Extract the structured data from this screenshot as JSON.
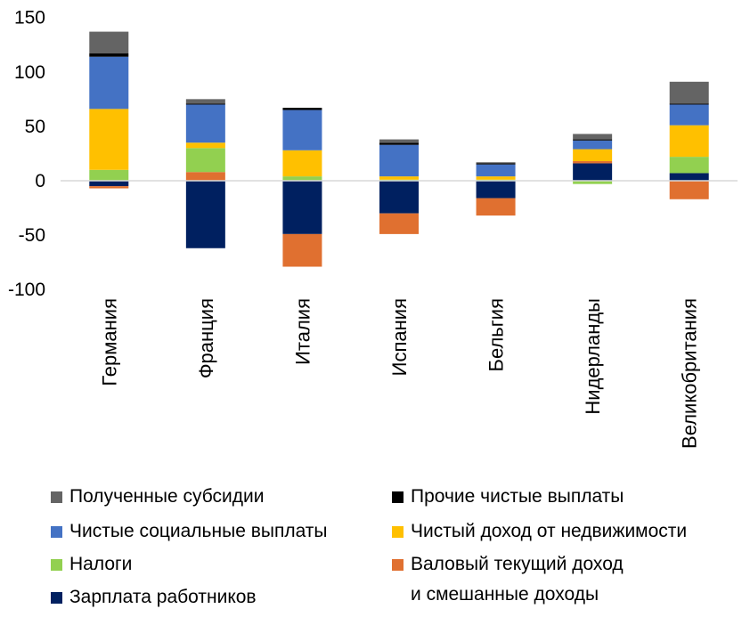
{
  "chart_data": {
    "type": "bar",
    "stacked": true,
    "categories": [
      "Германия",
      "Франция",
      "Италия",
      "Испания",
      "Бельгия",
      "Нидерланды",
      "Великобритания"
    ],
    "ylim": [
      -100,
      150
    ],
    "yticks": [
      -100,
      -50,
      0,
      50,
      100,
      150
    ],
    "xlabel": "",
    "ylabel": "",
    "grid": false,
    "legend_position": "bottom",
    "series": [
      {
        "name": "Зарплата работников",
        "color": "#002060",
        "values": [
          -5,
          -62,
          -49,
          -30,
          -16,
          16,
          7
        ]
      },
      {
        "name": "Валовый текущий доход и смешанные доходы",
        "color": "#E07030",
        "values": [
          -2,
          8,
          -30,
          -19,
          -16,
          2,
          -17
        ]
      },
      {
        "name": "Налоги",
        "color": "#92D050",
        "values": [
          10,
          22,
          4,
          1,
          1,
          -3,
          15
        ]
      },
      {
        "name": "Чистый доход от недвижимости",
        "color": "#FFC000",
        "values": [
          56,
          5,
          24,
          3,
          3,
          11,
          29
        ]
      },
      {
        "name": "Чистые социальные выплаты",
        "color": "#4472C4",
        "values": [
          48,
          35,
          37,
          29,
          11,
          8,
          19
        ]
      },
      {
        "name": "Прочие чистые выплаты",
        "color": "#000000",
        "values": [
          3,
          1,
          2,
          2,
          1,
          1,
          1
        ]
      },
      {
        "name": "Полученные субсидии",
        "color": "#646464",
        "values": [
          20,
          4,
          0,
          3,
          1,
          5,
          20
        ]
      }
    ]
  },
  "legend": {
    "items": [
      {
        "label": "Полученные субсидии",
        "color": "#646464"
      },
      {
        "label": "Прочие чистые выплаты",
        "color": "#000000"
      },
      {
        "label": "Чистые социальные выплаты",
        "color": "#4472C4"
      },
      {
        "label": "Чистый доход от недвижимости",
        "color": "#FFC000"
      },
      {
        "label": "Налоги",
        "color": "#92D050"
      },
      {
        "label": "Валовый текущий доход",
        "label2": "и смешанные доходы",
        "color": "#E07030"
      },
      {
        "label": "Зарплата работников",
        "color": "#002060"
      }
    ]
  }
}
